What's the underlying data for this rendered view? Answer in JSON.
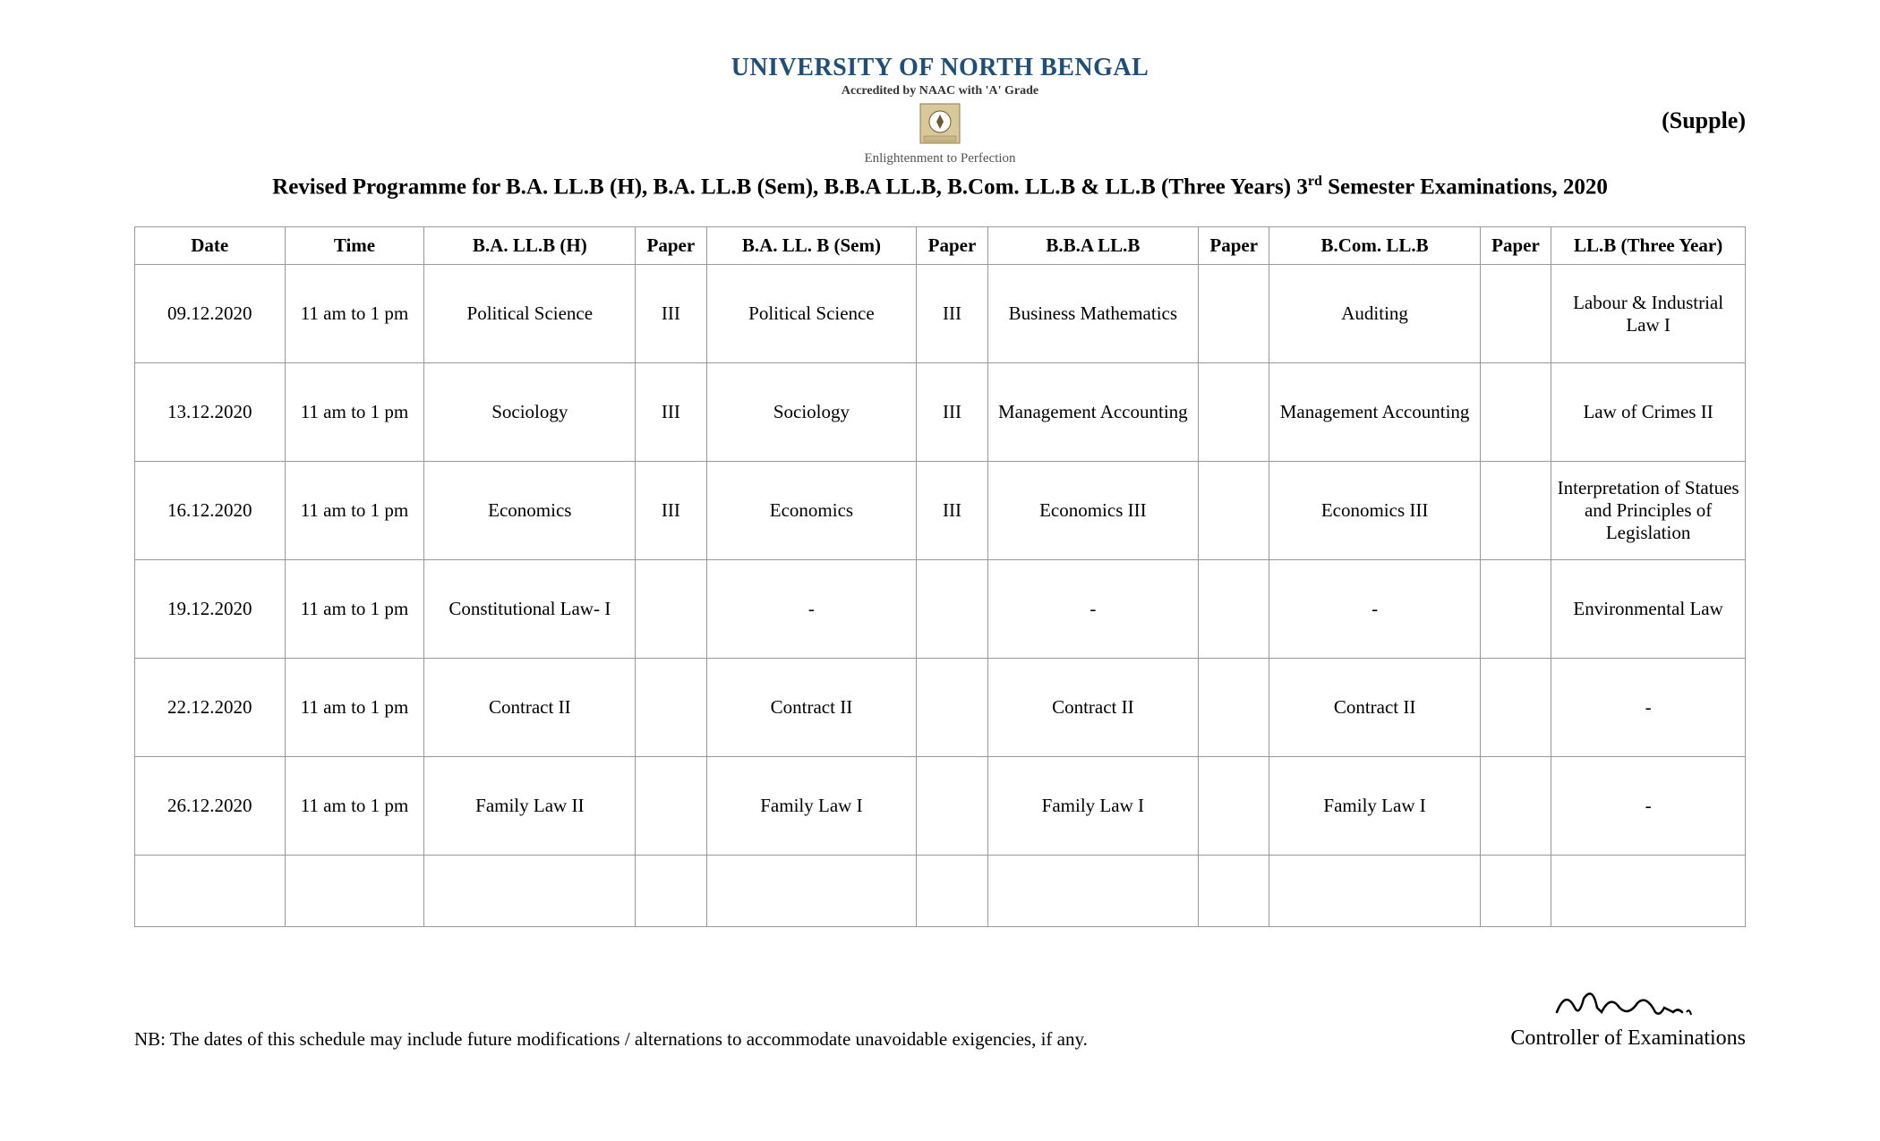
{
  "header": {
    "university": "UNIVERSITY OF NORTH BENGAL",
    "accredited": "Accredited by NAAC with 'A' Grade",
    "motto": "Enlightenment to Perfection",
    "supple": "(Supple)",
    "title_prefix": "Revised Programme for B.A. LL.B (H), B.A. LL.B (Sem), B.B.A LL.B, B.Com. LL.B & LL.B (Three Years) 3",
    "title_sup": "rd",
    "title_suffix": " Semester Examinations, 2020"
  },
  "columns": {
    "date": "Date",
    "time": "Time",
    "ba_h": "B.A. LL.B (H)",
    "ba_sem": "B.A. LL. B (Sem)",
    "bba": "B.B.A LL.B",
    "bcom": "B.Com. LL.B",
    "llb": "LL.B (Three Year)",
    "paper": "Paper"
  },
  "rows": [
    {
      "date": "09.12.2020",
      "time": "11 am to 1 pm",
      "ba_h": "Political Science",
      "ba_h_paper": "III",
      "ba_sem": "Political Science",
      "ba_sem_paper": "III",
      "bba": "Business Mathematics",
      "bba_paper": "",
      "bcom": "Auditing",
      "bcom_paper": "",
      "llb": "Labour & Industrial Law I"
    },
    {
      "date": "13.12.2020",
      "time": "11 am to 1 pm",
      "ba_h": "Sociology",
      "ba_h_paper": "III",
      "ba_sem": "Sociology",
      "ba_sem_paper": "III",
      "bba": "Management Accounting",
      "bba_paper": "",
      "bcom": "Management Accounting",
      "bcom_paper": "",
      "llb": "Law of Crimes II"
    },
    {
      "date": "16.12.2020",
      "time": "11 am to 1 pm",
      "ba_h": "Economics",
      "ba_h_paper": "III",
      "ba_sem": "Economics",
      "ba_sem_paper": "III",
      "bba": "Economics III",
      "bba_paper": "",
      "bcom": "Economics III",
      "bcom_paper": "",
      "llb": "Interpretation of Statues and Principles of Legislation"
    },
    {
      "date": "19.12.2020",
      "time": "11 am to 1 pm",
      "ba_h": "Constitutional Law- I",
      "ba_h_paper": "",
      "ba_sem": "-",
      "ba_sem_paper": "",
      "bba": "-",
      "bba_paper": "",
      "bcom": "-",
      "bcom_paper": "",
      "llb": "Environmental Law"
    },
    {
      "date": "22.12.2020",
      "time": "11 am to 1 pm",
      "ba_h": "Contract II",
      "ba_h_paper": "",
      "ba_sem": "Contract II",
      "ba_sem_paper": "",
      "bba": "Contract II",
      "bba_paper": "",
      "bcom": "Contract II",
      "bcom_paper": "",
      "llb": "-"
    },
    {
      "date": "26.12.2020",
      "time": "11 am to 1 pm",
      "ba_h": "Family Law II",
      "ba_h_paper": "",
      "ba_sem": "Family Law I",
      "ba_sem_paper": "",
      "bba": "Family Law I",
      "bba_paper": "",
      "bcom": "Family Law I",
      "bcom_paper": "",
      "llb": "-"
    }
  ],
  "footer": {
    "nb": "NB: The dates of this schedule may include future modifications / alternations to accommodate unavoidable exigencies, if any.",
    "controller": "Controller of Examinations"
  },
  "colors": {
    "univ_name": "#1f4e79",
    "text": "#000000",
    "border": "#999999",
    "motto": "#555555"
  }
}
